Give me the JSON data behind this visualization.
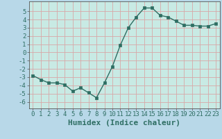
{
  "x": [
    0,
    1,
    2,
    3,
    4,
    5,
    6,
    7,
    8,
    9,
    10,
    11,
    12,
    13,
    14,
    15,
    16,
    17,
    18,
    19,
    20,
    21,
    22,
    23
  ],
  "y": [
    -2.8,
    -3.3,
    -3.7,
    -3.7,
    -3.9,
    -4.7,
    -4.3,
    -4.9,
    -5.5,
    -3.7,
    -1.7,
    0.9,
    3.0,
    4.3,
    5.4,
    5.4,
    4.5,
    4.3,
    3.8,
    3.3,
    3.3,
    3.2,
    3.2,
    3.5
  ],
  "xlabel": "Humidex (Indice chaleur)",
  "xlim": [
    -0.5,
    23.5
  ],
  "ylim": [
    -6.8,
    6.2
  ],
  "yticks": [
    -6,
    -5,
    -4,
    -3,
    -2,
    -1,
    0,
    1,
    2,
    3,
    4,
    5
  ],
  "xticks": [
    0,
    1,
    2,
    3,
    4,
    5,
    6,
    7,
    8,
    9,
    10,
    11,
    12,
    13,
    14,
    15,
    16,
    17,
    18,
    19,
    20,
    21,
    22,
    23
  ],
  "line_color": "#2e6e63",
  "marker": "s",
  "marker_size": 2.5,
  "bg_color": "#b8d8e8",
  "grid_color": "#d8a8a8",
  "face_color": "#c8eae4",
  "xlabel_fontsize": 8,
  "tick_fontsize": 6.5,
  "linewidth": 1.0
}
